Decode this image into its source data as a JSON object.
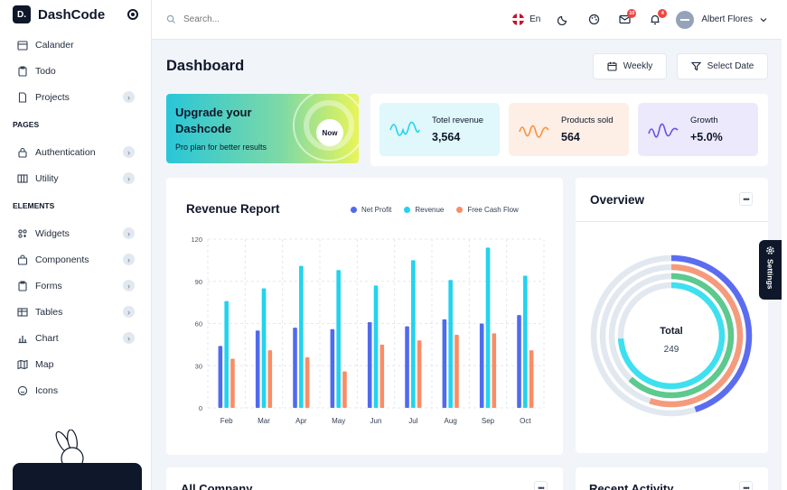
{
  "brand": {
    "name": "DashCode",
    "logo_text": "D."
  },
  "sidebar": {
    "top_items": [
      {
        "label": "Calander",
        "icon": "calendar-icon",
        "has_chevron": false
      },
      {
        "label": "Todo",
        "icon": "clipboard-icon",
        "has_chevron": false
      },
      {
        "label": "Projects",
        "icon": "document-icon",
        "has_chevron": true
      }
    ],
    "pages_title": "PAGES",
    "pages_items": [
      {
        "label": "Authentication",
        "icon": "lock-icon",
        "has_chevron": true
      },
      {
        "label": "Utility",
        "icon": "columns-icon",
        "has_chevron": true
      }
    ],
    "elements_title": "ELEMENTS",
    "elements_items": [
      {
        "label": "Widgets",
        "icon": "widgets-icon",
        "has_chevron": true
      },
      {
        "label": "Components",
        "icon": "bag-icon",
        "has_chevron": true
      },
      {
        "label": "Forms",
        "icon": "clipboard-icon",
        "has_chevron": true
      },
      {
        "label": "Tables",
        "icon": "table-icon",
        "has_chevron": true
      },
      {
        "label": "Chart",
        "icon": "chart-icon",
        "has_chevron": true
      },
      {
        "label": "Map",
        "icon": "map-icon",
        "has_chevron": false
      },
      {
        "label": "Icons",
        "icon": "smile-icon",
        "has_chevron": false
      }
    ]
  },
  "header": {
    "search_placeholder": "Search...",
    "language": "En",
    "mail_count": "10",
    "notification_count": "4",
    "user_name": "Albert Flores"
  },
  "main": {
    "title": "Dashboard",
    "weekly_button": "Weekly",
    "select_date_button": "Select Date",
    "upgrade": {
      "title": "Upgrade your Dashcode",
      "subtitle": "Pro plan for better results",
      "button": "Now"
    },
    "stats": [
      {
        "label": "Totel revenue",
        "value": "3,564",
        "bg": "#e0f7fb",
        "wave": "#22d3ee"
      },
      {
        "label": "Products sold",
        "value": "564",
        "bg": "#fdeee6",
        "wave": "#fb923c"
      },
      {
        "label": "Growth",
        "value": "+5.0%",
        "bg": "#ece9fd",
        "wave": "#6d4fe6"
      }
    ],
    "revenue_title": "Revenue Report",
    "overview_title": "Overview",
    "company_title": "All Company",
    "activity_title": "Recent Activity",
    "settings_label": "Settings"
  },
  "chart_data": [
    {
      "type": "bar",
      "title": "Revenue Report",
      "categories": [
        "Feb",
        "Mar",
        "Apr",
        "May",
        "Jun",
        "Jul",
        "Aug",
        "Sep",
        "Oct"
      ],
      "series": [
        {
          "name": "Net Profit",
          "color": "#4f6bed",
          "values": [
            44,
            55,
            57,
            56,
            61,
            58,
            63,
            60,
            66
          ]
        },
        {
          "name": "Revenue",
          "color": "#22d3ee",
          "values": [
            76,
            85,
            101,
            98,
            87,
            105,
            91,
            114,
            94
          ]
        },
        {
          "name": "Free Cash Flow",
          "color": "#fb8c65",
          "values": [
            35,
            41,
            36,
            26,
            45,
            48,
            52,
            53,
            41
          ]
        }
      ],
      "ylim": [
        0,
        120
      ],
      "yticks": [
        0,
        30,
        60,
        90,
        120
      ],
      "grid": true,
      "legend": "top-right"
    },
    {
      "type": "pie",
      "title": "Overview",
      "center_label": "Total",
      "center_value": "249",
      "segments": [
        {
          "color": "#5b6cf0",
          "value": 0.45
        },
        {
          "color": "#f59b7c",
          "value": 0.55
        },
        {
          "color": "#5cc98d",
          "value": 0.62
        },
        {
          "color": "#3ee0f0",
          "value": 0.74
        }
      ]
    }
  ]
}
